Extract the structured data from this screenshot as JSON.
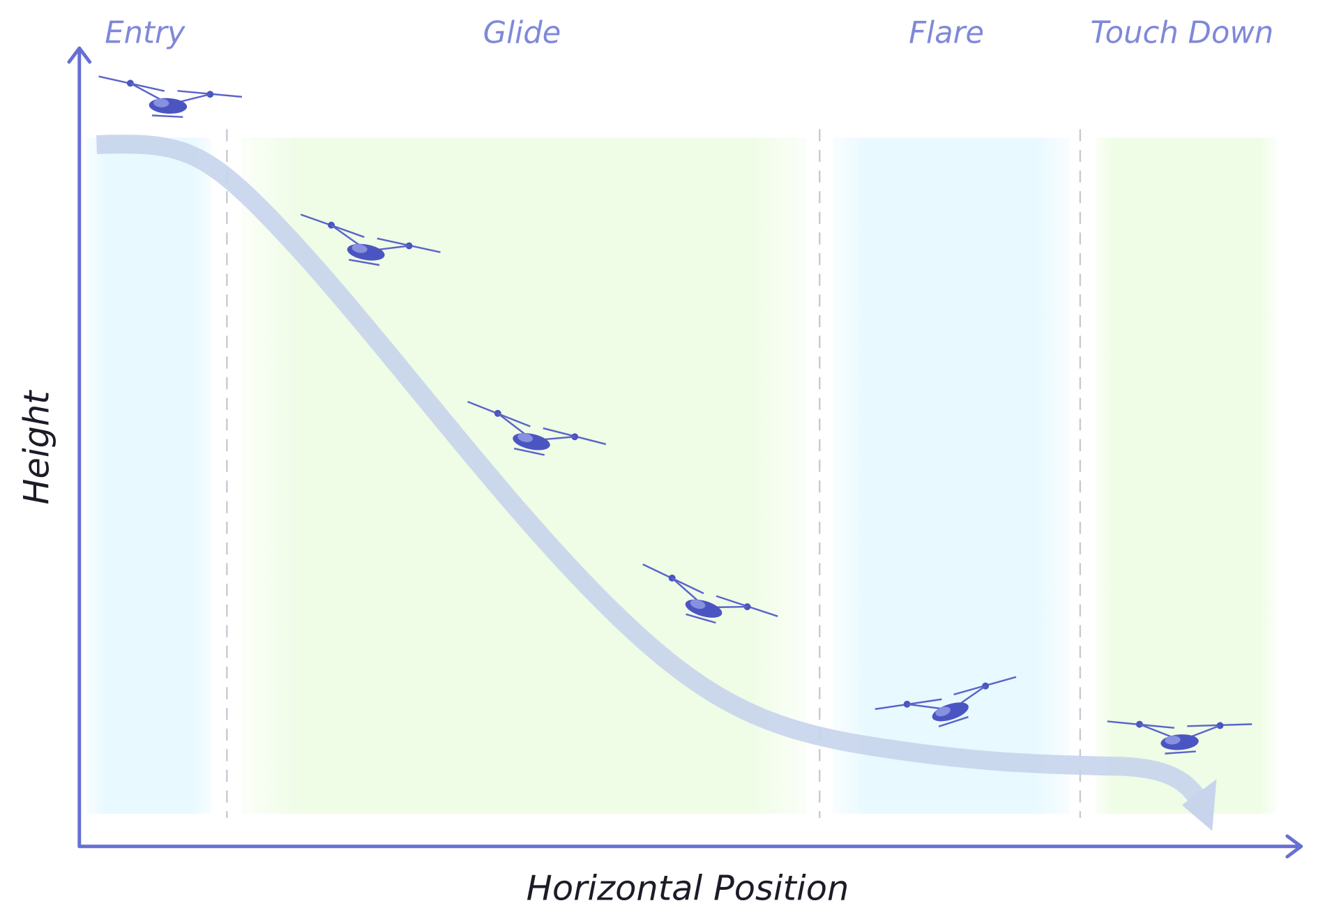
{
  "phases": [
    "Entry",
    "Glide",
    "Flare",
    "Touch Down"
  ],
  "axes": {
    "y": "Height",
    "x": "Horizontal Position"
  }
}
